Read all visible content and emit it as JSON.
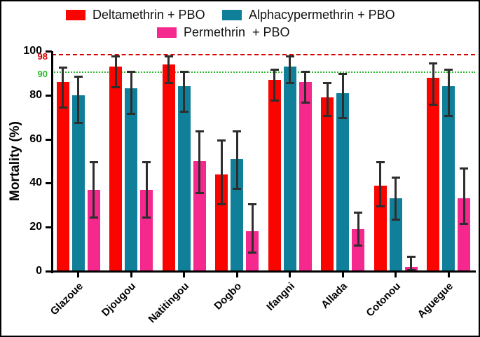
{
  "colors": {
    "deltamethrin": "#fa0400",
    "alphacypermethrin": "#107f99",
    "permethrin": "#f4288d",
    "error_bar": "#2e2e2e",
    "axis": "#000000",
    "ref98": "#d40000",
    "ref90": "#2eb82e"
  },
  "legend": {
    "row1": [
      "Deltamethrin + PBO",
      "Alphacypermethrin + PBO"
    ],
    "row2": [
      "Permethrin  + PBO"
    ]
  },
  "chart_data": {
    "type": "bar",
    "title": "",
    "xlabel": "",
    "ylabel": "Mortality (%)",
    "ylim": [
      0,
      100
    ],
    "yticks": [
      0,
      20,
      40,
      60,
      80,
      100
    ],
    "grid": false,
    "legend_position": "top",
    "categories": [
      "Glazoue",
      "Djougou",
      "Natitingou",
      "Dogbo",
      "Ifangni",
      "Allada",
      "Cotonou",
      "Aguegue"
    ],
    "series": [
      {
        "name": "Deltamethrin + PBO",
        "color_key": "deltamethrin",
        "values": [
          86,
          93,
          94,
          44,
          87,
          79,
          39,
          88
        ],
        "err_upper": [
          93,
          98,
          98,
          60,
          92,
          86,
          50,
          95
        ],
        "err_lower": [
          74,
          83,
          85,
          30,
          77,
          70,
          29,
          75
        ]
      },
      {
        "name": "Alphacypermethrin + PBO",
        "color_key": "alphacypermethrin",
        "values": [
          80,
          83,
          84,
          51,
          93,
          81,
          33,
          84
        ],
        "err_upper": [
          89,
          91,
          91,
          64,
          98,
          90,
          43,
          92
        ],
        "err_lower": [
          67,
          71,
          72,
          37,
          85,
          69,
          23,
          70
        ]
      },
      {
        "name": "Permethrin  + PBO",
        "color_key": "permethrin",
        "values": [
          37,
          37,
          50,
          18,
          86,
          19,
          2,
          33
        ],
        "err_upper": [
          50,
          50,
          64,
          31,
          91,
          27,
          7,
          47
        ],
        "err_lower": [
          24,
          24,
          35,
          8,
          76,
          11,
          0,
          21
        ]
      }
    ],
    "reference_lines": [
      {
        "value": 98,
        "label": "98",
        "style": "dashed",
        "color_key": "ref98"
      },
      {
        "value": 90,
        "label": "90",
        "style": "dotted",
        "color_key": "ref90"
      }
    ]
  }
}
